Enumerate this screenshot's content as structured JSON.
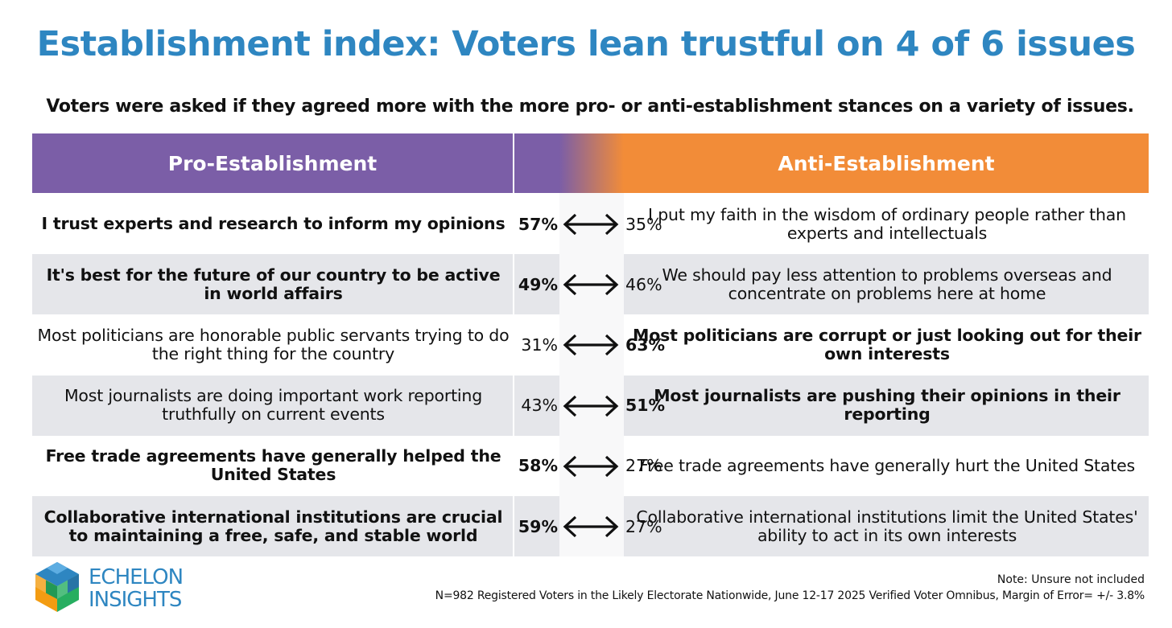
{
  "title": "Establishment index: Voters lean trustful on 4 of 6 issues",
  "subtitle": "Voters were asked if they agreed more with the more pro- or anti-establishment stances on a variety of issues.",
  "colors": {
    "title": "#2E86C1",
    "pro_header": "#7B5EA7",
    "anti_header": "#F28C38",
    "row_shade": "#e5e6ea"
  },
  "chart_data": {
    "type": "table",
    "columns": [
      "Pro-Establishment",
      "Anti-Establishment"
    ],
    "rows": [
      {
        "pro_text": "I trust experts and research to inform my opinions",
        "pro_pct": "57%",
        "anti_pct": "35%",
        "anti_text": "I put my faith in the wisdom of ordinary people rather than experts and intellectuals",
        "winner": "pro"
      },
      {
        "pro_text": "It's best for the future of our country to be active in world affairs",
        "pro_pct": "49%",
        "anti_pct": "46%",
        "anti_text": "We should pay less attention to problems overseas and concentrate on problems here at home",
        "winner": "pro"
      },
      {
        "pro_text": "Most politicians are honorable public servants trying to do the right thing for the country",
        "pro_pct": "31%",
        "anti_pct": "63%",
        "anti_text": "Most politicians are corrupt or just looking out for their own interests",
        "winner": "anti"
      },
      {
        "pro_text": "Most journalists are doing important work reporting truthfully on current events",
        "pro_pct": "43%",
        "anti_pct": "51%",
        "anti_text": "Most journalists are pushing their opinions in their reporting",
        "winner": "anti"
      },
      {
        "pro_text": "Free trade agreements have generally helped the United States",
        "pro_pct": "58%",
        "anti_pct": "27%",
        "anti_text": "Free trade agreements have generally hurt the United States",
        "winner": "pro"
      },
      {
        "pro_text": "Collaborative international institutions are crucial to maintaining a free, safe, and stable world",
        "pro_pct": "59%",
        "anti_pct": "27%",
        "anti_text": "Collaborative international institutions limit the United States' ability to act in its own interests",
        "winner": "pro"
      }
    ]
  },
  "logo": {
    "line1": "ECHELON",
    "line2": "INSIGHTS"
  },
  "footer": {
    "note": "Note: Unsure not included",
    "source": "N=982 Registered Voters in the Likely Electorate Nationwide, June 12-17 2025 Verified Voter Omnibus, Margin of Error= +/- 3.8%"
  }
}
